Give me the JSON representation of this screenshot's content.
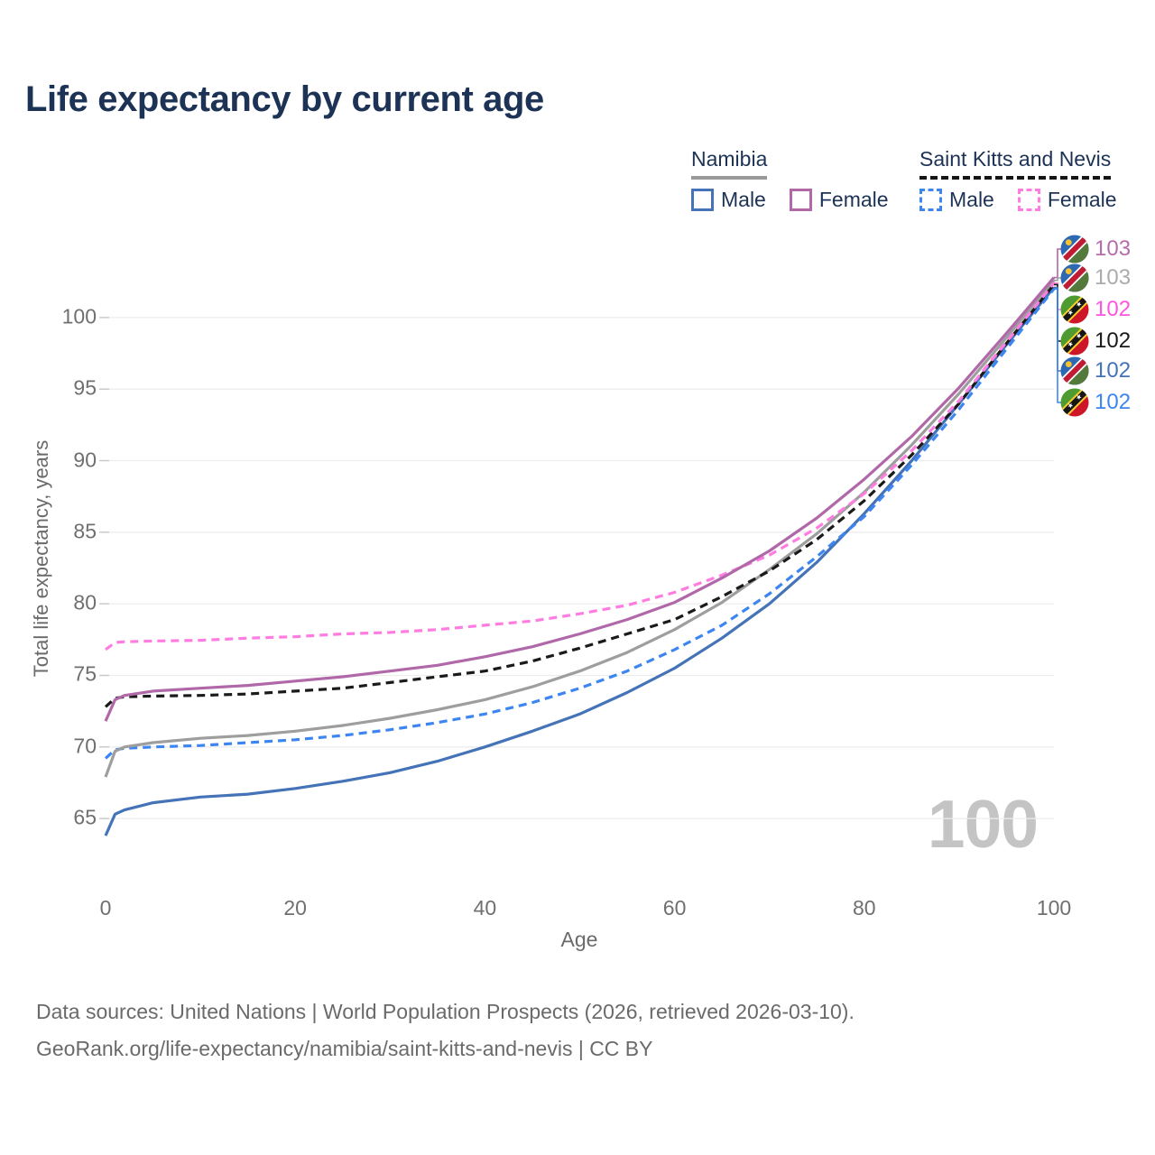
{
  "title": "Life expectancy by current age",
  "watermark": "100",
  "legend": {
    "groups": [
      {
        "label": "Namibia",
        "underline_color": "#999999",
        "underline_style": "solid",
        "items": [
          {
            "label": "Male",
            "color": "#4473b8",
            "dashed": false
          },
          {
            "label": "Female",
            "color": "#b168a8",
            "dashed": false
          }
        ]
      },
      {
        "label": "Saint Kitts and Nevis",
        "underline_color": "#151515",
        "underline_style": "dashed",
        "items": [
          {
            "label": "Male",
            "color": "#3d86f2",
            "dashed": true
          },
          {
            "label": "Female",
            "color": "#ff7ce0",
            "dashed": true
          }
        ]
      }
    ]
  },
  "chart_data": {
    "type": "line",
    "title": "Life expectancy by current age",
    "xlabel": "Age",
    "ylabel": "Total life expectancy, years",
    "x_ticks": [
      0,
      20,
      40,
      60,
      80,
      100
    ],
    "y_ticks": [
      65,
      70,
      75,
      80,
      85,
      90,
      95,
      100
    ],
    "xlim": [
      0,
      100
    ],
    "ylim": [
      63,
      104
    ],
    "grid": "horizontal",
    "legend_position": "top-right",
    "x": [
      0,
      1,
      2,
      5,
      10,
      15,
      20,
      25,
      30,
      35,
      40,
      45,
      50,
      55,
      60,
      65,
      70,
      75,
      80,
      85,
      90,
      95,
      100
    ],
    "series": [
      {
        "name": "Namibia Male",
        "color": "#4473b8",
        "dash": false,
        "end_label": "102",
        "values": [
          63.8,
          65.3,
          65.6,
          66.1,
          66.5,
          66.7,
          67.1,
          67.6,
          68.2,
          69.0,
          70.0,
          71.1,
          72.3,
          73.8,
          75.5,
          77.6,
          80.0,
          82.9,
          86.3,
          90.0,
          94.0,
          98.1,
          102.1
        ]
      },
      {
        "name": "Saint Kitts and Nevis Male",
        "color": "#3d86f2",
        "dash": true,
        "end_label": "102",
        "values": [
          69.2,
          69.8,
          69.9,
          70.0,
          70.1,
          70.3,
          70.5,
          70.8,
          71.2,
          71.7,
          72.3,
          73.1,
          74.1,
          75.3,
          76.8,
          78.5,
          80.7,
          83.3,
          86.1,
          89.7,
          93.6,
          97.8,
          102.0
        ]
      },
      {
        "name": "Namibia Both sexes",
        "color": "#9e9e9e",
        "dash": false,
        "end_label": "103",
        "values": [
          67.9,
          69.7,
          70.0,
          70.3,
          70.6,
          70.8,
          71.1,
          71.5,
          72.0,
          72.6,
          73.3,
          74.2,
          75.3,
          76.6,
          78.2,
          80.1,
          82.4,
          84.9,
          87.8,
          91.1,
          94.7,
          98.6,
          102.6
        ]
      },
      {
        "name": "Saint Kitts and Nevis Both sexes",
        "color": "#1a1a1a",
        "dash": true,
        "end_label": "102",
        "values": [
          72.8,
          73.4,
          73.5,
          73.55,
          73.6,
          73.7,
          73.9,
          74.1,
          74.5,
          74.9,
          75.3,
          76.0,
          76.9,
          77.9,
          78.9,
          80.5,
          82.3,
          84.5,
          87.2,
          90.4,
          94.0,
          98.2,
          102.3
        ]
      },
      {
        "name": "Saint Kitts and Nevis Female",
        "color": "#ff7ce0",
        "dash": true,
        "end_label": "102",
        "values": [
          76.8,
          77.3,
          77.35,
          77.4,
          77.45,
          77.6,
          77.7,
          77.9,
          78.0,
          78.2,
          78.5,
          78.8,
          79.3,
          79.9,
          80.8,
          82.0,
          83.4,
          85.3,
          87.7,
          90.7,
          94.2,
          98.3,
          102.4
        ]
      },
      {
        "name": "Namibia Female",
        "color": "#b168a8",
        "dash": false,
        "end_label": "103",
        "values": [
          71.8,
          73.3,
          73.6,
          73.9,
          74.1,
          74.3,
          74.6,
          74.9,
          75.3,
          75.7,
          76.3,
          77.0,
          77.9,
          78.9,
          80.1,
          81.8,
          83.7,
          86.0,
          88.7,
          91.7,
          95.1,
          98.9,
          102.8
        ]
      }
    ]
  },
  "end_labels": [
    {
      "value": "103",
      "color": "#b56cab",
      "flag": "namibia",
      "series": "Namibia Female"
    },
    {
      "value": "103",
      "color": "#ababab",
      "flag": "namibia",
      "series": "Namibia Both sexes"
    },
    {
      "value": "102",
      "color": "#ff54df",
      "flag": "saint-kitts-and-nevis",
      "series": "Saint Kitts and Nevis Female"
    },
    {
      "value": "102",
      "color": "#1a1a1a",
      "flag": "saint-kitts-and-nevis",
      "series": "Saint Kitts and Nevis Both sexes"
    },
    {
      "value": "102",
      "color": "#4473b8",
      "flag": "namibia",
      "series": "Namibia Male"
    },
    {
      "value": "102",
      "color": "#3d86f2",
      "flag": "saint-kitts-and-nevis",
      "series": "Saint Kitts and Nevis Male"
    }
  ],
  "footer": {
    "line1": "Data sources: United Nations | World Population Prospects (2026, retrieved 2026-03-10).",
    "line2": "GeoRank.org/life-expectancy/namibia/saint-kitts-and-nevis | CC BY"
  }
}
